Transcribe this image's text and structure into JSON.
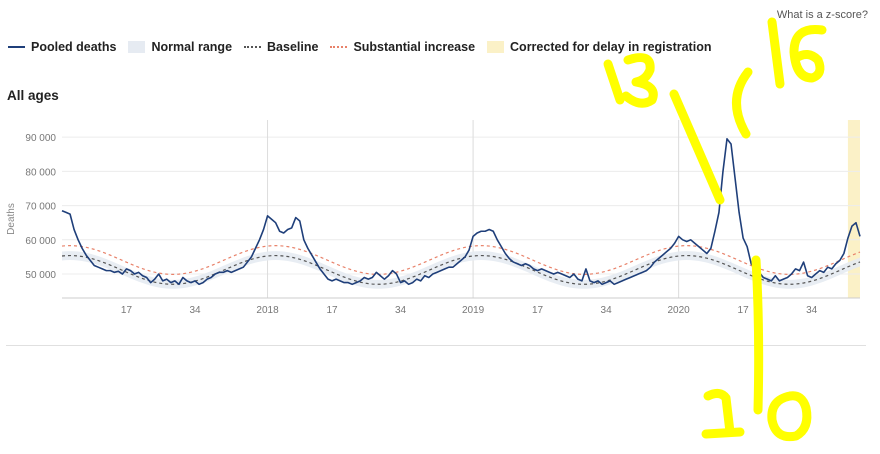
{
  "header": {
    "zscore_link": "What is a z-score?"
  },
  "legend": {
    "pooled": "Pooled deaths",
    "normal_range": "Normal range",
    "baseline": "Baseline",
    "substantial": "Substantial increase",
    "corrected": "Corrected for delay in registration"
  },
  "panel_title": "All ages",
  "colors": {
    "pooled": "#1f3f7a",
    "normal_range": "#e6ebf2",
    "baseline": "#555555",
    "substantial": "#e8826a",
    "corrected": "#fbf1c7",
    "annotation": "#ffff00"
  },
  "handwriting": [
    "13",
    "16",
    "10"
  ],
  "chart_data": {
    "type": "line",
    "ylabel": "Deaths",
    "ylim": [
      43000,
      95000
    ],
    "yticks": [
      50000,
      60000,
      70000,
      80000,
      90000
    ],
    "ytick_labels": [
      "50 000",
      "60 000",
      "70 000",
      "80 000",
      "90 000"
    ],
    "xticks": [
      {
        "label": "17",
        "week_index": 16
      },
      {
        "label": "34",
        "week_index": 33
      },
      {
        "label": "2018",
        "week_index": 51
      },
      {
        "label": "17",
        "week_index": 67
      },
      {
        "label": "34",
        "week_index": 84
      },
      {
        "label": "2019",
        "week_index": 102
      },
      {
        "label": "17",
        "week_index": 118
      },
      {
        "label": "34",
        "week_index": 135
      },
      {
        "label": "2020",
        "week_index": 153
      },
      {
        "label": "17",
        "week_index": 169
      },
      {
        "label": "34",
        "week_index": 186
      }
    ],
    "year_gridlines": [
      51,
      102,
      153
    ],
    "x_range": [
      0,
      198
    ],
    "corrected_from_week_index": 195,
    "series": [
      {
        "name": "Pooled deaths",
        "values": [
          68500,
          68000,
          67500,
          63000,
          60000,
          57500,
          55500,
          54000,
          52500,
          52000,
          51500,
          51000,
          51000,
          50500,
          50800,
          50000,
          51500,
          51000,
          50000,
          50500,
          49500,
          49000,
          47500,
          48500,
          50000,
          48000,
          48500,
          47500,
          48000,
          47000,
          49000,
          48000,
          47500,
          48000,
          47000,
          47500,
          48500,
          49000,
          50000,
          50500,
          50500,
          51000,
          50500,
          51000,
          51500,
          52000,
          53500,
          55000,
          57500,
          60000,
          63000,
          67000,
          66000,
          65000,
          62500,
          62000,
          63000,
          63500,
          66500,
          65500,
          60000,
          57500,
          55500,
          53500,
          51500,
          50000,
          48500,
          48000,
          48500,
          48000,
          47500,
          47500,
          47000,
          47500,
          48000,
          49000,
          48500,
          49000,
          50500,
          49500,
          48500,
          49500,
          51000,
          50000,
          47500,
          48000,
          47000,
          47500,
          48500,
          48000,
          49500,
          49000,
          50000,
          50500,
          51000,
          51500,
          52000,
          52000,
          53000,
          54000,
          55000,
          57000,
          61000,
          62000,
          62500,
          62500,
          63000,
          62500,
          60000,
          58000,
          56000,
          54500,
          53500,
          53000,
          52500,
          53000,
          52500,
          51500,
          51000,
          51500,
          51000,
          50500,
          50000,
          50500,
          50000,
          49500,
          49000,
          50000,
          48500,
          48000,
          51500,
          48000,
          47500,
          48000,
          47000,
          47500,
          48000,
          47000,
          47500,
          48000,
          48500,
          49000,
          49500,
          50000,
          50500,
          51000,
          52000,
          53500,
          54500,
          55500,
          56500,
          57500,
          59000,
          61000,
          60000,
          59500,
          60000,
          59000,
          58000,
          57000,
          56000,
          57500,
          62500,
          68000,
          80000,
          89500,
          88000,
          78000,
          68000,
          60500,
          58000,
          53000,
          51500,
          50500,
          49000,
          48500,
          48000,
          49500,
          48000,
          48500,
          49000,
          50000,
          51500,
          51000,
          53500,
          49500,
          49000,
          50000,
          51000,
          50500,
          52000,
          51500,
          53000,
          54000,
          56000,
          60500,
          64000,
          65000,
          61000
        ]
      }
    ]
  }
}
